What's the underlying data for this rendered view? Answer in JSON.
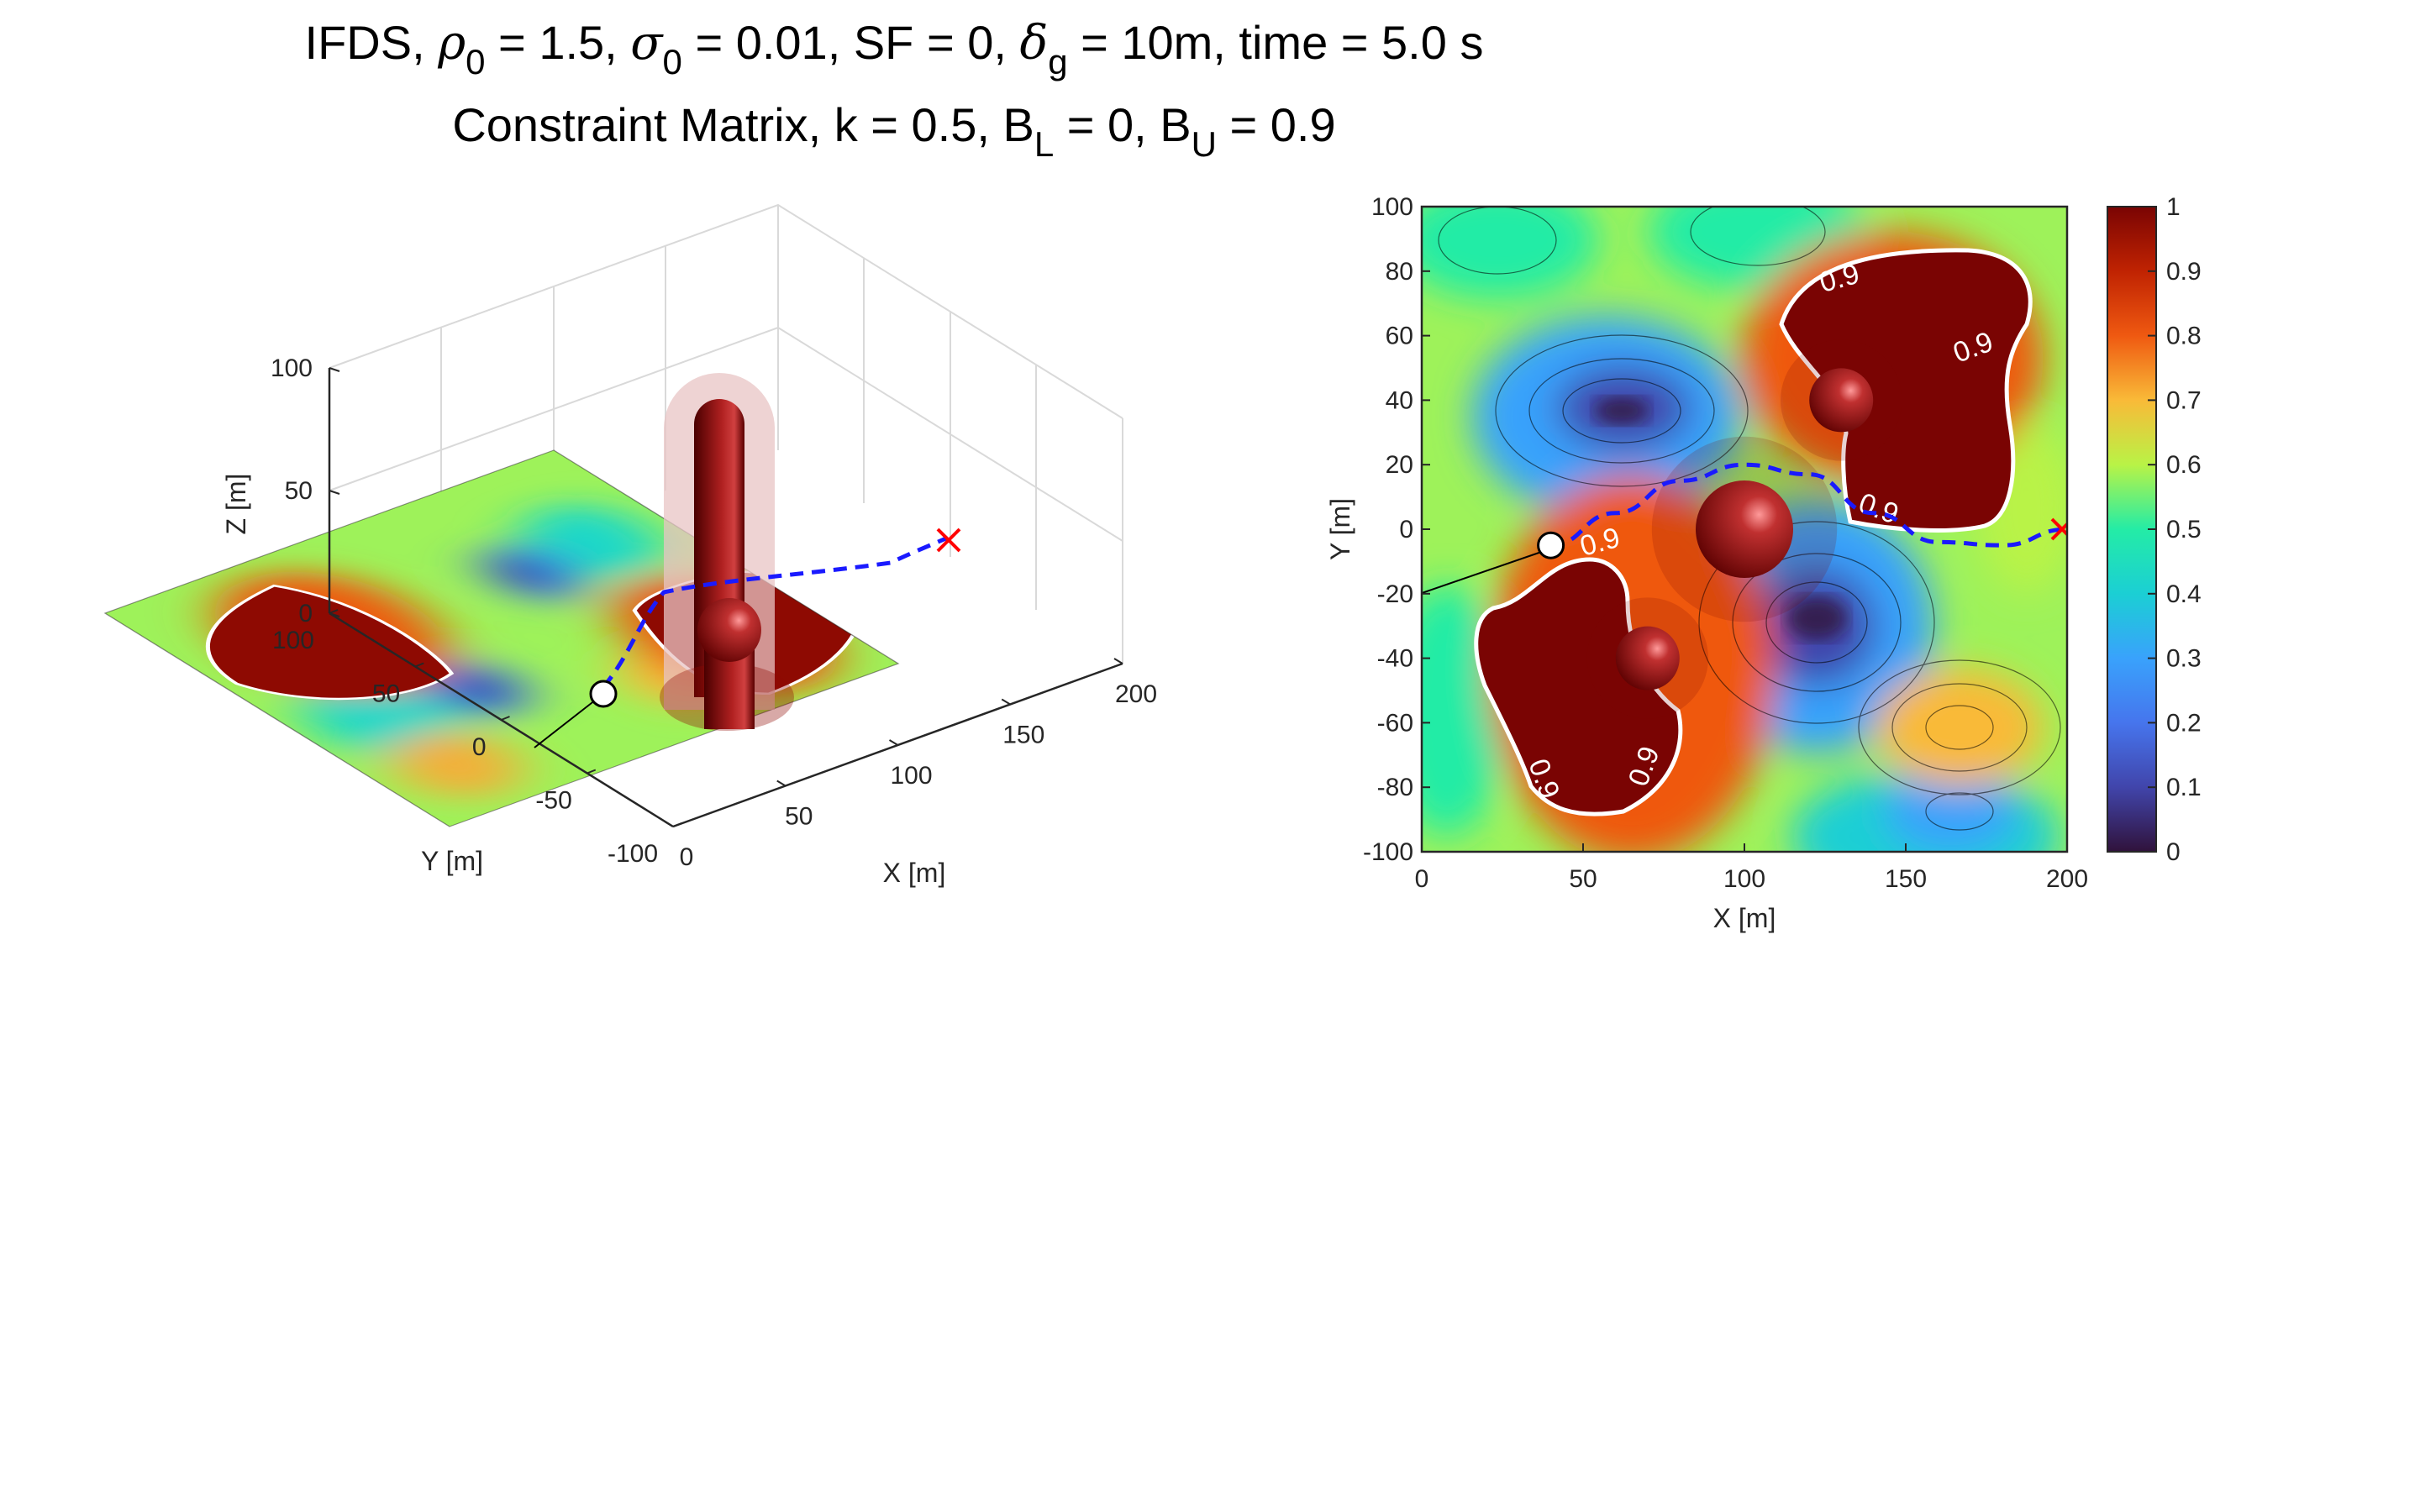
{
  "figure": {
    "title_line1": {
      "a": "IFDS, ",
      "rho": "ρ",
      "rho_sub": "0",
      "b": " = 1.5, ",
      "sigma": "σ",
      "sigma_sub": "0",
      "c": " = 0.01, SF = 0, ",
      "delta": "δ",
      "delta_sub": "g",
      "d": " = 10m, time =  5.0 s"
    },
    "title_line2": {
      "a": "Constraint Matrix, k = 0.5, B",
      "bl_sub": "L",
      "b": " = 0, B",
      "bu_sub": "U",
      "c": " = 0.9"
    }
  },
  "chart_data": [
    {
      "type": "surface3d",
      "xlabel": "X [m]",
      "ylabel": "Y [m]",
      "zlabel": "Z [m]",
      "xlim": [
        0,
        200
      ],
      "ylim": [
        -100,
        100
      ],
      "zlim": [
        0,
        100
      ],
      "x_ticks": [
        "0",
        "50",
        "100",
        "150",
        "200"
      ],
      "y_ticks": [
        "-100",
        "-50",
        "0",
        "50",
        "100"
      ],
      "z_ticks": [
        "0",
        "50",
        "100"
      ],
      "grid": true,
      "obstacles": [
        {
          "shape": "cylinder",
          "x": 100,
          "y": 20,
          "height": 95
        },
        {
          "shape": "cylinder",
          "x": 70,
          "y": -40,
          "height": 40
        }
      ],
      "start": {
        "x": 40,
        "y": -5
      },
      "goal": {
        "x": 200,
        "y": 0
      }
    },
    {
      "type": "contour",
      "xlabel": "X [m]",
      "ylabel": "Y [m]",
      "xlim": [
        0,
        200
      ],
      "ylim": [
        -100,
        100
      ],
      "x_ticks": [
        "0",
        "50",
        "100",
        "150",
        "200"
      ],
      "y_ticks": [
        "100",
        "80",
        "60",
        "40",
        "20",
        "0",
        "-20",
        "-40",
        "-60",
        "-80",
        "-100"
      ],
      "contour_level": 0.9,
      "contour_labels": [
        "0.9",
        "0.9",
        "0.9",
        "0.9",
        "0.9",
        "0.9"
      ],
      "colorbar": {
        "range": [
          0,
          1
        ],
        "ticks": [
          "1",
          "0.9",
          "0.8",
          "0.7",
          "0.6",
          "0.5",
          "0.4",
          "0.3",
          "0.2",
          "0.1",
          "0"
        ]
      },
      "spheres": [
        {
          "x": 100,
          "y": 0
        },
        {
          "x": 130,
          "y": 40
        },
        {
          "x": 70,
          "y": -40
        }
      ],
      "start": {
        "x": 40,
        "y": -5
      },
      "goal": {
        "x": 200,
        "y": 0
      },
      "path": [
        {
          "x": 40,
          "y": -5
        },
        {
          "x": 60,
          "y": 5
        },
        {
          "x": 80,
          "y": 15
        },
        {
          "x": 100,
          "y": 20
        },
        {
          "x": 120,
          "y": 17
        },
        {
          "x": 140,
          "y": 5
        },
        {
          "x": 160,
          "y": -4
        },
        {
          "x": 180,
          "y": -5
        },
        {
          "x": 200,
          "y": 0
        }
      ]
    }
  ],
  "colors": {
    "path": "#1a1aff",
    "goal_marker": "#ff0000",
    "contour_line": "#ffffff"
  }
}
